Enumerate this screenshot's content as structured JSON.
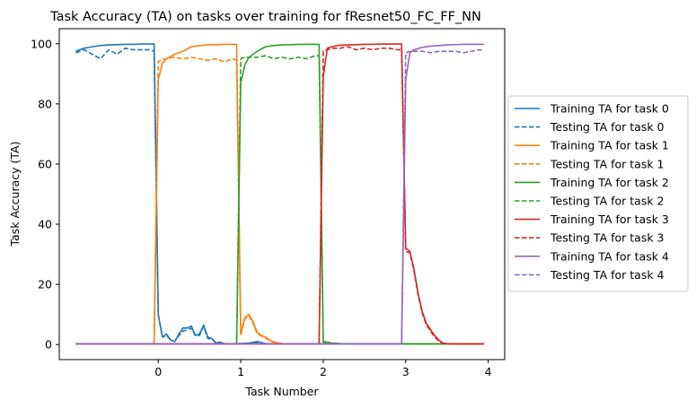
{
  "chart_data": {
    "type": "line",
    "title": "Task Accuracy (TA) on tasks over training for fResnet50_FC_FF_NN",
    "xlabel": "Task Number",
    "ylabel": "Task Accuracy (TA)",
    "xlim": [
      -1.2,
      4.2
    ],
    "ylim": [
      -5,
      105
    ],
    "xticks": [
      0,
      1,
      2,
      3,
      4
    ],
    "yticks": [
      0,
      20,
      40,
      60,
      80,
      100
    ],
    "legend_position": "right",
    "grid": false,
    "series": [
      {
        "name": "Training TA for task 0",
        "color": "#1f77b4",
        "style": "solid",
        "x": [
          -1.0,
          -0.9,
          -0.8,
          -0.7,
          -0.6,
          -0.5,
          -0.4,
          -0.3,
          -0.2,
          -0.1,
          -0.05,
          0.0,
          0.05,
          0.1,
          0.15,
          0.2,
          0.25,
          0.3,
          0.35,
          0.4,
          0.45,
          0.5,
          0.55,
          0.6,
          0.65,
          0.7,
          0.75,
          0.8,
          0.85,
          0.9,
          0.95,
          1.0,
          1.1,
          1.2,
          1.3,
          1.5,
          2.0,
          2.5,
          3.0,
          3.5,
          3.95
        ],
        "y": [
          97.5,
          98.5,
          99.0,
          99.4,
          99.6,
          99.7,
          99.8,
          99.8,
          99.9,
          99.9,
          99.9,
          10.0,
          2.5,
          3.5,
          1.5,
          1.0,
          3.5,
          5.5,
          5.5,
          6.2,
          3.0,
          3.5,
          6.5,
          2.5,
          2.0,
          0.5,
          0.8,
          0.3,
          0.2,
          0.2,
          0.3,
          0.3,
          0.5,
          1.0,
          0.3,
          0.2,
          0.2,
          0.2,
          0.2,
          0.2,
          0.2
        ]
      },
      {
        "name": "Testing TA for task 0",
        "color": "#1f77b4",
        "style": "dashed",
        "x": [
          -1.0,
          -0.9,
          -0.8,
          -0.7,
          -0.6,
          -0.5,
          -0.4,
          -0.3,
          -0.2,
          -0.1,
          -0.05,
          0.0,
          0.05,
          0.1,
          0.15,
          0.2,
          0.25,
          0.3,
          0.35,
          0.4,
          0.45,
          0.5,
          0.55,
          0.6,
          0.65,
          0.7,
          0.75,
          0.8,
          0.85,
          0.9,
          0.95,
          1.0,
          1.1,
          1.2,
          1.3,
          1.5,
          2.0,
          2.5,
          3.0,
          3.5,
          3.95
        ],
        "y": [
          97.0,
          98.0,
          96.5,
          95.0,
          98.0,
          96.5,
          98.5,
          98.0,
          98.0,
          98.0,
          97.5,
          10.0,
          2.5,
          3.0,
          1.5,
          1.0,
          3.0,
          4.5,
          4.8,
          5.5,
          3.0,
          3.0,
          6.0,
          2.0,
          1.8,
          0.5,
          0.7,
          0.3,
          0.2,
          0.2,
          0.3,
          0.3,
          0.4,
          0.8,
          0.3,
          0.2,
          0.2,
          0.2,
          0.2,
          0.2,
          0.2
        ]
      },
      {
        "name": "Training TA for task 1",
        "color": "#ff7f0e",
        "style": "solid",
        "x": [
          -1.0,
          -0.5,
          -0.05,
          0.0,
          0.05,
          0.1,
          0.2,
          0.3,
          0.4,
          0.5,
          0.6,
          0.7,
          0.8,
          0.9,
          0.95,
          1.0,
          1.05,
          1.1,
          1.15,
          1.2,
          1.25,
          1.3,
          1.35,
          1.4,
          1.5,
          1.6,
          2.0,
          2.5,
          3.0,
          3.5,
          3.95
        ],
        "y": [
          0.2,
          0.2,
          0.2,
          88.0,
          93.5,
          95.0,
          96.5,
          97.5,
          99.0,
          99.4,
          99.6,
          99.7,
          99.8,
          99.8,
          99.8,
          3.5,
          9.0,
          10.0,
          7.5,
          4.0,
          3.0,
          2.5,
          1.5,
          0.8,
          0.3,
          0.2,
          0.2,
          0.2,
          0.2,
          0.2,
          0.2
        ]
      },
      {
        "name": "Testing TA for task 1",
        "color": "#ff7f0e",
        "style": "dashed",
        "x": [
          -1.0,
          -0.5,
          -0.05,
          0.0,
          0.05,
          0.1,
          0.2,
          0.3,
          0.4,
          0.5,
          0.6,
          0.7,
          0.8,
          0.9,
          0.95,
          1.0,
          1.05,
          1.1,
          1.15,
          1.2,
          1.25,
          1.3,
          1.35,
          1.4,
          1.5,
          1.6,
          2.0,
          2.5,
          3.0,
          3.5,
          3.95
        ],
        "y": [
          0.2,
          0.2,
          0.2,
          94.0,
          95.0,
          95.0,
          95.5,
          95.0,
          95.5,
          95.0,
          94.5,
          95.0,
          94.0,
          95.0,
          94.5,
          3.0,
          8.5,
          9.5,
          7.0,
          3.5,
          2.8,
          2.2,
          1.3,
          0.7,
          0.3,
          0.2,
          0.2,
          0.2,
          0.2,
          0.2,
          0.2
        ]
      },
      {
        "name": "Training TA for task 2",
        "color": "#2ca02c",
        "style": "solid",
        "x": [
          -1.0,
          -0.5,
          0.0,
          0.5,
          0.95,
          1.0,
          1.05,
          1.1,
          1.2,
          1.3,
          1.4,
          1.5,
          1.6,
          1.7,
          1.8,
          1.9,
          1.95,
          2.0,
          2.05,
          2.1,
          2.2,
          2.5,
          3.0,
          3.5,
          3.95
        ],
        "y": [
          0.2,
          0.2,
          0.2,
          0.2,
          0.2,
          87.0,
          93.0,
          95.5,
          97.5,
          99.0,
          99.4,
          99.6,
          99.7,
          99.8,
          99.8,
          99.8,
          99.8,
          1.0,
          0.8,
          0.5,
          0.3,
          0.2,
          0.2,
          0.2,
          0.2
        ]
      },
      {
        "name": "Testing TA for task 2",
        "color": "#2ca02c",
        "style": "dashed",
        "x": [
          -1.0,
          -0.5,
          0.0,
          0.5,
          0.95,
          1.0,
          1.05,
          1.1,
          1.2,
          1.3,
          1.4,
          1.5,
          1.6,
          1.7,
          1.8,
          1.9,
          1.95,
          2.0,
          2.05,
          2.1,
          2.2,
          2.5,
          3.0,
          3.5,
          3.95
        ],
        "y": [
          0.2,
          0.2,
          0.2,
          0.2,
          0.2,
          95.0,
          95.5,
          95.5,
          95.5,
          96.0,
          95.0,
          95.5,
          95.0,
          95.5,
          95.0,
          96.0,
          96.0,
          0.8,
          0.6,
          0.4,
          0.3,
          0.2,
          0.2,
          0.2,
          0.2
        ]
      },
      {
        "name": "Training TA for task 3",
        "color": "#d62728",
        "style": "solid",
        "x": [
          -1.0,
          -0.5,
          0.0,
          0.5,
          1.0,
          1.5,
          1.95,
          2.0,
          2.05,
          2.1,
          2.2,
          2.3,
          2.4,
          2.5,
          2.6,
          2.7,
          2.8,
          2.9,
          2.95,
          3.0,
          3.05,
          3.1,
          3.15,
          3.2,
          3.25,
          3.3,
          3.35,
          3.4,
          3.45,
          3.5,
          3.6,
          3.7,
          3.8,
          3.95
        ],
        "y": [
          0.2,
          0.2,
          0.2,
          0.2,
          0.2,
          0.2,
          0.2,
          89.0,
          98.5,
          99.0,
          99.5,
          99.6,
          99.7,
          99.8,
          99.8,
          99.9,
          99.9,
          99.9,
          99.9,
          32.0,
          31.0,
          25.0,
          17.0,
          11.0,
          7.0,
          5.0,
          3.0,
          1.5,
          0.5,
          0.3,
          0.2,
          0.2,
          0.2,
          0.2
        ]
      },
      {
        "name": "Testing TA for task 3",
        "color": "#d62728",
        "style": "dashed",
        "x": [
          -1.0,
          -0.5,
          0.0,
          0.5,
          1.0,
          1.5,
          1.95,
          2.0,
          2.05,
          2.1,
          2.2,
          2.3,
          2.4,
          2.5,
          2.6,
          2.7,
          2.8,
          2.9,
          2.95,
          3.0,
          3.05,
          3.1,
          3.15,
          3.2,
          3.25,
          3.3,
          3.35,
          3.4,
          3.45,
          3.5,
          3.6,
          3.7,
          3.8,
          3.95
        ],
        "y": [
          0.2,
          0.2,
          0.2,
          0.2,
          0.2,
          0.2,
          0.2,
          97.5,
          98.0,
          98.5,
          98.5,
          99.0,
          98.0,
          98.5,
          98.0,
          98.5,
          98.5,
          98.0,
          98.0,
          31.0,
          30.5,
          24.5,
          16.5,
          10.5,
          6.5,
          4.5,
          2.5,
          1.2,
          0.4,
          0.3,
          0.2,
          0.2,
          0.2,
          0.2
        ]
      },
      {
        "name": "Training TA for task 4",
        "color": "#9467bd",
        "style": "solid",
        "x": [
          -1.0,
          -0.5,
          0.0,
          0.5,
          1.0,
          1.5,
          2.0,
          2.5,
          2.95,
          3.0,
          3.05,
          3.1,
          3.2,
          3.3,
          3.4,
          3.5,
          3.6,
          3.7,
          3.8,
          3.9,
          3.95
        ],
        "y": [
          0.2,
          0.2,
          0.2,
          0.2,
          0.2,
          0.2,
          0.2,
          0.2,
          0.2,
          88.0,
          97.0,
          98.0,
          98.8,
          99.2,
          99.4,
          99.6,
          99.7,
          99.8,
          99.8,
          99.8,
          99.8
        ]
      },
      {
        "name": "Testing TA for task 4",
        "color": "#9467bd",
        "style": "dashed",
        "x": [
          -1.0,
          -0.5,
          0.0,
          0.5,
          1.0,
          1.5,
          2.0,
          2.5,
          2.95,
          3.0,
          3.05,
          3.1,
          3.2,
          3.3,
          3.4,
          3.5,
          3.6,
          3.7,
          3.8,
          3.9,
          3.95
        ],
        "y": [
          0.2,
          0.2,
          0.2,
          0.2,
          0.2,
          0.2,
          0.2,
          0.2,
          0.2,
          97.0,
          97.5,
          97.5,
          97.5,
          97.0,
          97.5,
          97.5,
          97.5,
          97.0,
          97.5,
          98.0,
          97.5
        ]
      }
    ]
  }
}
